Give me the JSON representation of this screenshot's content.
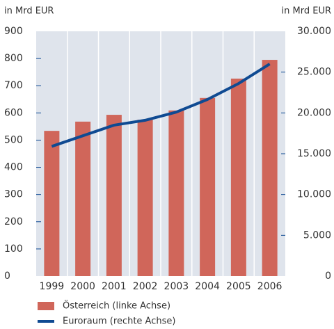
{
  "chart_data": {
    "type": "bar_line",
    "y_label": "in Mrd EUR",
    "y2_label": "in Mrd EUR",
    "categories": [
      "1999",
      "2000",
      "2001",
      "2002",
      "2003",
      "2004",
      "2005",
      "2006"
    ],
    "series": [
      {
        "name": "Österreich (linke Achse)",
        "color": "#d0665a",
        "type": "bar",
        "axis": "y",
        "values": [
          534,
          568,
          593,
          575,
          609,
          655,
          726,
          795
        ]
      },
      {
        "name": "Euroraum (rechte Achse)",
        "color": "#0f4a92",
        "type": "line",
        "axis": "y2",
        "values": [
          15900,
          17200,
          18500,
          19100,
          20100,
          21650,
          23600,
          26000
        ]
      }
    ],
    "ylim": [
      0,
      900
    ],
    "yticks": [
      0,
      100,
      200,
      300,
      400,
      500,
      600,
      700,
      800,
      900
    ],
    "y2lim": [
      0,
      30000
    ],
    "y2ticks": [
      0,
      {
        "value": 5000,
        "label": "5.000"
      },
      {
        "value": 10000,
        "label": "10.000"
      },
      {
        "value": 15000,
        "label": "15.000"
      },
      {
        "value": 20000,
        "label": "20.000"
      },
      {
        "value": 25000,
        "label": "25.000"
      },
      {
        "value": 30000,
        "label": "30.000"
      }
    ],
    "grid": true
  }
}
